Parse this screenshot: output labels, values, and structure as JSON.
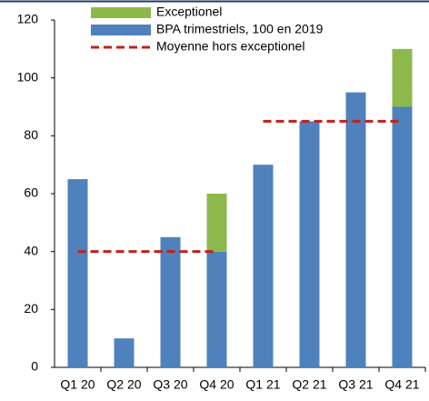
{
  "chart_data": {
    "type": "bar",
    "categories": [
      "Q1 20",
      "Q2 20",
      "Q3 20",
      "Q4 20",
      "Q1 21",
      "Q2 21",
      "Q3 21",
      "Q4 21"
    ],
    "series": [
      {
        "name": "Exceptionel",
        "color": "#8db94c",
        "values": [
          0,
          0,
          0,
          20,
          0,
          0,
          0,
          20
        ]
      },
      {
        "name": "BPA trimestriels, 100 en 2019",
        "color": "#4f81bd",
        "values": [
          65,
          10,
          45,
          40,
          70,
          85,
          95,
          90
        ]
      },
      {
        "name": "Moyenne hors exceptionel",
        "color": "#c0211b",
        "type": "line",
        "values": [
          40,
          40,
          40,
          40,
          85,
          85,
          85,
          85
        ]
      }
    ],
    "stack_order": [
      1,
      0
    ],
    "ylim": [
      0,
      120
    ],
    "yticks": [
      0,
      20,
      40,
      60,
      80,
      100,
      120
    ],
    "grid": false,
    "legend": "top"
  }
}
